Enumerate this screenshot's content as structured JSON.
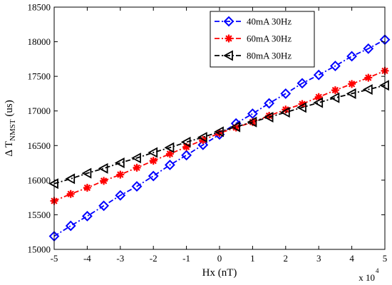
{
  "chart_data": {
    "type": "line",
    "xlabel": "Hx (nT)",
    "ylabel_prefix": "Δ T",
    "ylabel_sub": "NMST",
    "ylabel_suffix": " (us)",
    "x_multiplier_base": "x 10",
    "x_multiplier_exp": "4",
    "xlim": [
      -5,
      5
    ],
    "ylim": [
      15000,
      18500
    ],
    "xticks": [
      -5,
      -4,
      -3,
      -2,
      -1,
      0,
      1,
      2,
      3,
      4,
      5
    ],
    "yticks": [
      15000,
      15500,
      16000,
      16500,
      17000,
      17500,
      18000,
      18500
    ],
    "grid": false,
    "legend_position": "top-right",
    "x": [
      -5,
      -4.5,
      -4,
      -3.5,
      -3,
      -2.5,
      -2,
      -1.5,
      -1,
      -0.5,
      0,
      0.5,
      1,
      1.5,
      2,
      2.5,
      3,
      3.5,
      4,
      4.5,
      5
    ],
    "series": [
      {
        "name": "40mA 30Hz",
        "color": "#0000ff",
        "marker": "diamond",
        "values": [
          15190,
          15340,
          15480,
          15630,
          15780,
          15910,
          16060,
          16220,
          16360,
          16510,
          16660,
          16820,
          16960,
          17110,
          17250,
          17400,
          17520,
          17650,
          17790,
          17900,
          18030
        ]
      },
      {
        "name": "60mA 30Hz",
        "color": "#ff0000",
        "marker": "star",
        "values": [
          15700,
          15800,
          15890,
          15990,
          16080,
          16180,
          16280,
          16380,
          16480,
          16580,
          16680,
          16760,
          16840,
          16930,
          17020,
          17100,
          17200,
          17300,
          17390,
          17480,
          17580
        ]
      },
      {
        "name": "80mA 30Hz",
        "color": "#000000",
        "marker": "triangle-left",
        "values": [
          15950,
          16020,
          16100,
          16170,
          16250,
          16320,
          16400,
          16470,
          16550,
          16620,
          16700,
          16770,
          16840,
          16910,
          16980,
          17050,
          17120,
          17190,
          17250,
          17310,
          17370
        ]
      }
    ]
  }
}
